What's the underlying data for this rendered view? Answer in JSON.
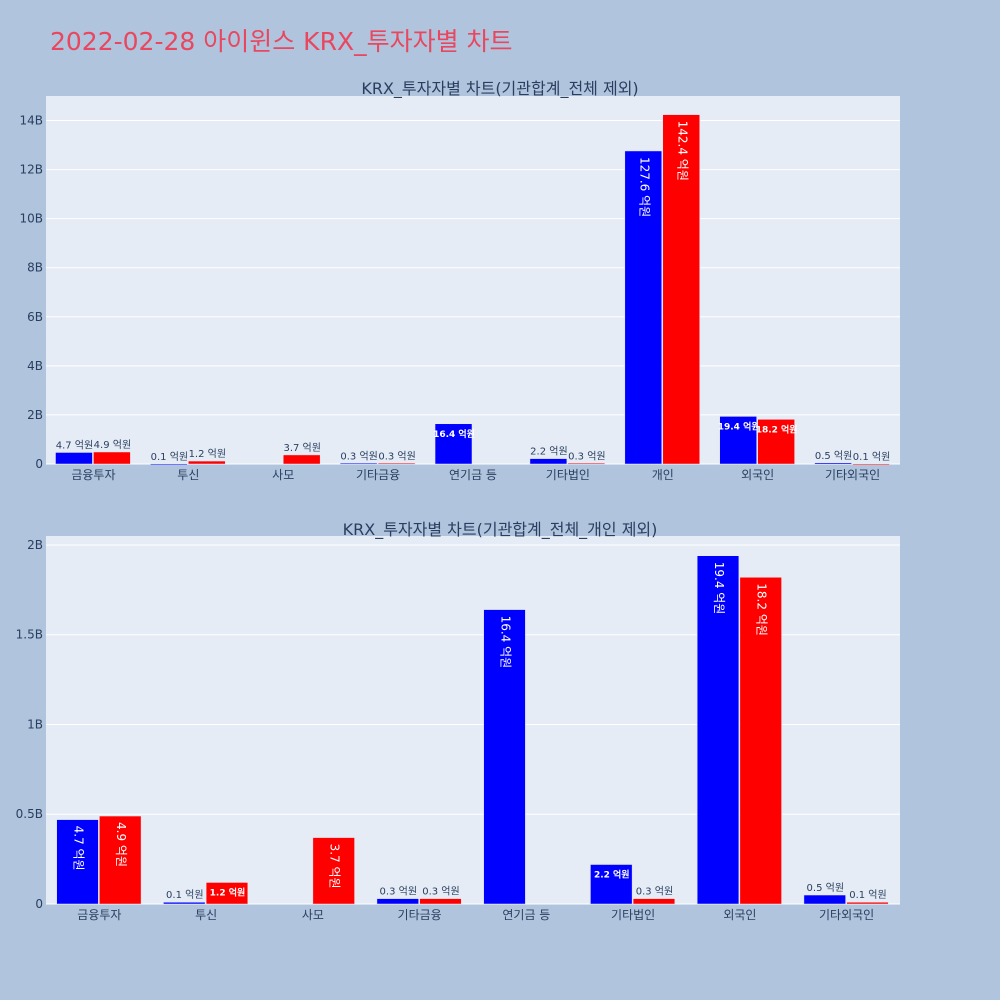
{
  "page": {
    "title": "2022-02-28 아이윈스 KRX_투자자별 차트"
  },
  "colors": {
    "buy": "#0000ff",
    "sell": "#ff0000",
    "plot_bg": "#e5ecf6",
    "paper_bg": "#b0c4de",
    "title": "#e8475f",
    "text": "#2a3f5f"
  },
  "chart_data": [
    {
      "type": "bar",
      "title": "KRX_투자자별 차트(기관합계_전체 제외)",
      "categories": [
        "금융투자",
        "투신",
        "사모",
        "기타금융",
        "연기금 등",
        "기타법인",
        "개인",
        "외국인",
        "기타외국인"
      ],
      "series": [
        {
          "color": "#0000ff",
          "values": [
            0.47,
            0.01,
            0,
            0.03,
            1.64,
            0.22,
            12.76,
            1.94,
            0.05
          ],
          "labels": [
            "4.7 억원",
            "0.1 억원",
            "",
            "0.3 억원",
            "16.4 억원",
            "2.2 억원",
            "127.6 억원",
            "19.4 억원",
            "0.5 억원"
          ]
        },
        {
          "color": "#ff0000",
          "values": [
            0.49,
            0.12,
            0.37,
            0.03,
            0,
            0.03,
            14.24,
            1.82,
            0.01
          ],
          "labels": [
            "4.9 억원",
            "1.2 억원",
            "3.7 억원",
            "0.3 억원",
            "",
            "0.3 억원",
            "142.4 억원",
            "18.2 억원",
            "0.1 억원"
          ]
        }
      ],
      "ylim": [
        0,
        15
      ],
      "yticks": [
        0,
        2,
        4,
        6,
        8,
        10,
        12,
        14
      ],
      "ytick_labels": [
        "0",
        "2B",
        "4B",
        "6B",
        "8B",
        "10B",
        "12B",
        "14B"
      ],
      "grid": true
    },
    {
      "type": "bar",
      "title": "KRX_투자자별 차트(기관합계_전체_개인 제외)",
      "categories": [
        "금융투자",
        "투신",
        "사모",
        "기타금융",
        "연기금 등",
        "기타법인",
        "외국인",
        "기타외국인"
      ],
      "series": [
        {
          "color": "#0000ff",
          "values": [
            0.47,
            0.01,
            0,
            0.03,
            1.64,
            0.22,
            1.94,
            0.05
          ],
          "labels": [
            "4.7 억원",
            "0.1 억원",
            "",
            "0.3 억원",
            "16.4 억원",
            "2.2 억원",
            "19.4 억원",
            "0.5 억원"
          ]
        },
        {
          "color": "#ff0000",
          "values": [
            0.49,
            0.12,
            0.37,
            0.03,
            0,
            0.03,
            1.82,
            0.01
          ],
          "labels": [
            "4.9 억원",
            "1.2 억원",
            "3.7 억원",
            "0.3 억원",
            "",
            "0.3 억원",
            "18.2 억원",
            "0.1 억원"
          ]
        }
      ],
      "ylim": [
        0,
        2.05
      ],
      "yticks": [
        0,
        0.5,
        1,
        1.5,
        2
      ],
      "ytick_labels": [
        "0",
        "0.5B",
        "1B",
        "1.5B",
        "2B"
      ],
      "grid": true
    }
  ]
}
